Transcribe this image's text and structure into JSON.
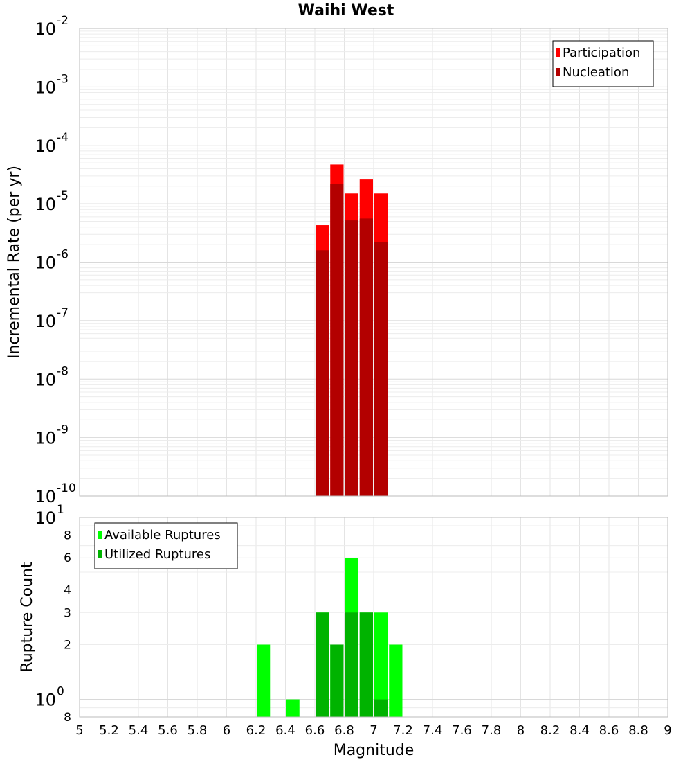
{
  "chart_data": [
    {
      "type": "bar",
      "title": "Waihi West",
      "ylabel": "Incremental Rate (per yr)",
      "xlabel": "",
      "y_scale": "log",
      "ylim": [
        1e-10,
        0.01
      ],
      "xlim": [
        5,
        9
      ],
      "bin_width": 0.1,
      "x_tick_labels": [],
      "y_tick_labels": [
        {
          "base": "10",
          "exp": "-2",
          "value": 0.01
        },
        {
          "base": "10",
          "exp": "-3",
          "value": 0.001
        },
        {
          "base": "10",
          "exp": "-4",
          "value": 0.0001
        },
        {
          "base": "10",
          "exp": "-5",
          "value": 1e-05
        },
        {
          "base": "10",
          "exp": "-6",
          "value": 1e-06
        },
        {
          "base": "10",
          "exp": "-7",
          "value": 1e-07
        },
        {
          "base": "10",
          "exp": "-8",
          "value": 1e-08
        },
        {
          "base": "10",
          "exp": "-9",
          "value": 1e-09
        },
        {
          "base": "10",
          "exp": "-10",
          "value": 1e-10
        }
      ],
      "grid": true,
      "legend_position": "top-right",
      "series": [
        {
          "name": "Participation",
          "color": "#ff0000",
          "x": [
            6.65,
            6.75,
            6.85,
            6.95,
            7.05
          ],
          "values": [
            4.3e-06,
            4.7e-05,
            1.5e-05,
            2.6e-05,
            1.5e-05
          ]
        },
        {
          "name": "Nucleation",
          "color": "#b30000",
          "x": [
            6.65,
            6.75,
            6.85,
            6.95,
            7.05
          ],
          "values": [
            1.6e-06,
            2.2e-05,
            5.2e-06,
            5.6e-06,
            2.2e-06
          ]
        }
      ]
    },
    {
      "type": "bar",
      "title": "",
      "ylabel": "Rupture Count",
      "xlabel": "Magnitude",
      "y_scale": "log",
      "ylim": [
        0.8,
        10
      ],
      "xlim": [
        5,
        9
      ],
      "bin_width": 0.1,
      "x_tick_labels": [
        "5",
        "5.2",
        "5.4",
        "5.6",
        "5.8",
        "6",
        "6.2",
        "6.4",
        "6.6",
        "6.8",
        "7",
        "7.2",
        "7.4",
        "7.6",
        "7.8",
        "8",
        "8.2",
        "8.4",
        "8.6",
        "8.8",
        "9"
      ],
      "y_tick_labels": [
        {
          "base": "10",
          "exp": "1",
          "value": 10
        },
        {
          "base": "8",
          "exp": "",
          "value": 8
        },
        {
          "base": "6",
          "exp": "",
          "value": 6
        },
        {
          "base": "4",
          "exp": "",
          "value": 4
        },
        {
          "base": "3",
          "exp": "",
          "value": 3
        },
        {
          "base": "2",
          "exp": "",
          "value": 2
        },
        {
          "base": "10",
          "exp": "0",
          "value": 1
        },
        {
          "base": "8",
          "exp": "",
          "value": 0.8
        }
      ],
      "grid": true,
      "legend_position": "top-left",
      "series": [
        {
          "name": "Available Ruptures",
          "color": "#00ff00",
          "x": [
            6.25,
            6.45,
            6.65,
            6.75,
            6.85,
            6.95,
            7.05,
            7.15
          ],
          "values": [
            2,
            1,
            3,
            2,
            6,
            3,
            3,
            2
          ]
        },
        {
          "name": "Utilized Ruptures",
          "color": "#00b300",
          "x": [
            6.65,
            6.75,
            6.85,
            6.95,
            7.05
          ],
          "values": [
            3,
            2,
            3,
            3,
            1
          ]
        }
      ]
    }
  ]
}
